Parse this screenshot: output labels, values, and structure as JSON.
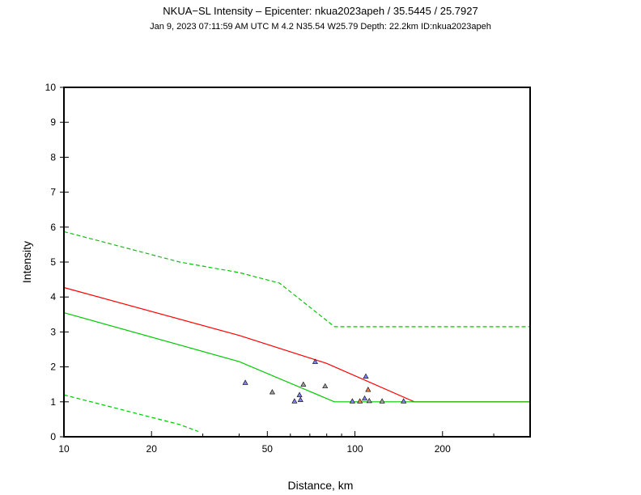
{
  "chart_data": {
    "type": "scatter",
    "title": "NKUA−SL Intensity –  Epicenter: nkua2023apeh / 35.5445 / 25.7927",
    "subtitle": "Jan  9, 2023 07:11:59 AM UTC   M 4.2   N35.54 W25.79   Depth: 22.2km   ID:nkua2023apeh",
    "xlabel": "Distance, km",
    "ylabel": "Intensity",
    "x_scale": "log",
    "xlim": [
      10,
      400
    ],
    "ylim": [
      0,
      10
    ],
    "x_ticks": [
      10,
      20,
      50,
      100,
      200
    ],
    "y_ticks": [
      0,
      1,
      2,
      3,
      4,
      5,
      6,
      7,
      8,
      9,
      10
    ],
    "grid": false,
    "curves": [
      {
        "style": "solid",
        "color": "#ff0000",
        "x": [
          10,
          40,
          80,
          160,
          400
        ],
        "y": [
          4.27,
          2.9,
          2.1,
          1.0,
          1.0
        ]
      },
      {
        "style": "solid",
        "color": "#00c800",
        "x": [
          10,
          40,
          85,
          400
        ],
        "y": [
          3.55,
          2.15,
          1.0,
          1.0
        ]
      },
      {
        "style": "dashed",
        "color": "#00c800",
        "x": [
          10,
          25,
          40,
          55,
          85,
          400
        ],
        "y": [
          5.87,
          5.0,
          4.7,
          4.4,
          3.15,
          3.15
        ]
      },
      {
        "style": "dashed",
        "color": "#00c800",
        "x": [
          10,
          25,
          29
        ],
        "y": [
          1.2,
          0.35,
          0.15
        ]
      }
    ],
    "points": [
      {
        "x": 42,
        "y": 1.55,
        "color": "#8080ff"
      },
      {
        "x": 52,
        "y": 1.28,
        "color": "#a0a0a0"
      },
      {
        "x": 62,
        "y": 1.02,
        "color": "#8080ff"
      },
      {
        "x": 64.5,
        "y": 1.2,
        "color": "#8080ff"
      },
      {
        "x": 65,
        "y": 1.06,
        "color": "#8080ff"
      },
      {
        "x": 66.5,
        "y": 1.5,
        "color": "#a0a0a0"
      },
      {
        "x": 73,
        "y": 2.15,
        "color": "#8080ff"
      },
      {
        "x": 79,
        "y": 1.45,
        "color": "#a0a0a0"
      },
      {
        "x": 98,
        "y": 1.02,
        "color": "#8080ff"
      },
      {
        "x": 104,
        "y": 1.02,
        "color": "#ff8040"
      },
      {
        "x": 108,
        "y": 1.1,
        "color": "#8080ff"
      },
      {
        "x": 109,
        "y": 1.73,
        "color": "#8080ff"
      },
      {
        "x": 111,
        "y": 1.35,
        "color": "#ff8040"
      },
      {
        "x": 112,
        "y": 1.03,
        "color": "#a0a0a0"
      },
      {
        "x": 124,
        "y": 1.02,
        "color": "#a0a0a0"
      },
      {
        "x": 147,
        "y": 1.02,
        "color": "#8080ff"
      }
    ]
  }
}
